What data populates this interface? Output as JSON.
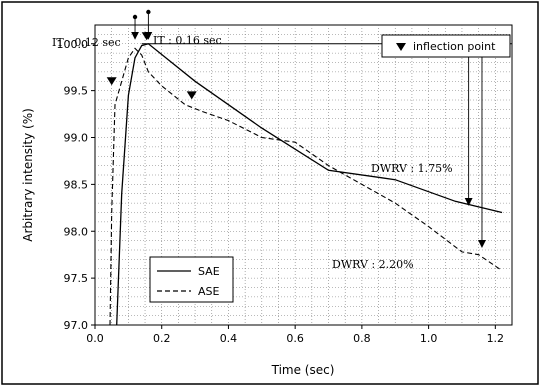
{
  "chart_data": {
    "type": "line",
    "title": "",
    "xlabel": "Time (sec)",
    "ylabel": "Arbitrary intensity (%)",
    "xlim": [
      0.0,
      1.25
    ],
    "ylim": [
      97.0,
      100.2
    ],
    "x_ticks": [
      "0.0",
      "0.2",
      "0.4",
      "0.6",
      "0.8",
      "1.0",
      "1.2"
    ],
    "y_ticks": [
      "97.0",
      "97.5",
      "98.0",
      "98.5",
      "99.0",
      "99.5",
      "100.0"
    ],
    "grid": true,
    "legend_position": "lower-left",
    "series": [
      {
        "name": "SAE",
        "style": "solid",
        "points": [
          [
            0.065,
            97.0
          ],
          [
            0.08,
            98.4
          ],
          [
            0.1,
            99.45
          ],
          [
            0.12,
            99.85
          ],
          [
            0.14,
            99.98
          ],
          [
            0.16,
            100.0
          ],
          [
            0.3,
            99.6
          ],
          [
            0.5,
            99.1
          ],
          [
            0.7,
            98.65
          ],
          [
            0.9,
            98.55
          ],
          [
            1.08,
            98.32
          ],
          [
            1.22,
            98.2
          ]
        ]
      },
      {
        "name": "ASE",
        "style": "dashed",
        "points": [
          [
            0.045,
            97.0
          ],
          [
            0.05,
            98.2
          ],
          [
            0.06,
            99.35
          ],
          [
            0.08,
            99.6
          ],
          [
            0.1,
            99.85
          ],
          [
            0.12,
            99.95
          ],
          [
            0.14,
            99.88
          ],
          [
            0.16,
            99.7
          ],
          [
            0.2,
            99.55
          ],
          [
            0.27,
            99.35
          ],
          [
            0.32,
            99.28
          ],
          [
            0.4,
            99.18
          ],
          [
            0.5,
            99.0
          ],
          [
            0.6,
            98.95
          ],
          [
            0.7,
            98.7
          ],
          [
            0.8,
            98.5
          ],
          [
            0.9,
            98.3
          ],
          [
            1.0,
            98.05
          ],
          [
            1.1,
            97.78
          ],
          [
            1.15,
            97.75
          ],
          [
            1.22,
            97.58
          ]
        ]
      }
    ],
    "reference_line": 100.0,
    "inflection_points": [
      [
        0.05,
        99.6
      ],
      [
        0.155,
        100.08
      ],
      [
        0.29,
        99.45
      ]
    ],
    "annotations": {
      "it_left": "IT : 0.12 sec",
      "it_right": "IT : 0.16 sec",
      "dwrv_sae": "DWRV : 1.75%",
      "dwrv_ase": "DWRV : 2.20%",
      "inflection_label": "inflection point"
    },
    "it_markers": [
      0.12,
      0.16
    ],
    "dwrv_arrows": [
      {
        "x": 1.12,
        "from": 100.0,
        "to": 98.25
      },
      {
        "x": 1.16,
        "from": 100.0,
        "to": 97.8
      }
    ]
  }
}
